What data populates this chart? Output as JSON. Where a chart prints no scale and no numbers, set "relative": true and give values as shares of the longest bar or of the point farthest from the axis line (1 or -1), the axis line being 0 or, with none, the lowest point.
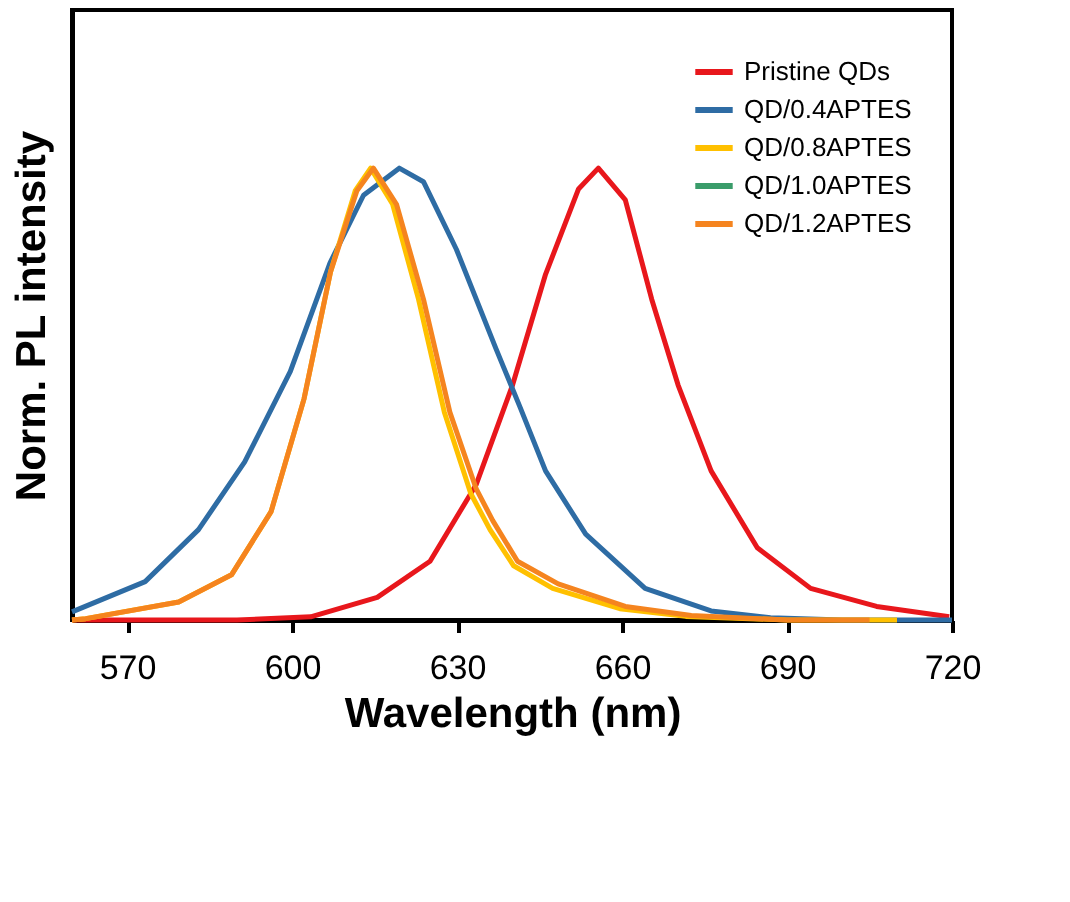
{
  "chart_data": {
    "type": "line",
    "relative": true,
    "xlabel": "Wavelength (nm)",
    "ylabel": "Norm. PL intensity",
    "xlim": [
      560,
      720
    ],
    "xticks": [
      570,
      600,
      630,
      660,
      690,
      720
    ],
    "grid": false,
    "legend": "top right",
    "marker": "none",
    "line_style": "solid",
    "series": [
      {
        "name": "Pristine QDs",
        "color": "#e8171c",
        "x": [
          560,
          590,
          603.4,
          615.5,
          625.1,
          633.5,
          640.1,
          646.1,
          652.1,
          655.7,
          660.6,
          665.4,
          670.2,
          676.2,
          684.6,
          694.3,
          706.3,
          719.5
        ],
        "values": [
          0,
          0,
          0.007,
          0.05,
          0.13,
          0.3,
          0.52,
          0.765,
          0.954,
          1,
          0.93,
          0.71,
          0.52,
          0.33,
          0.16,
          0.07,
          0.03,
          0.007
        ]
      },
      {
        "name": "QD/0.4APTES",
        "color": "#2e6ca4",
        "x": [
          560,
          573.3,
          583,
          591.4,
          599.7,
          606.9,
          613,
          619.5,
          623.9,
          629.9,
          637.1,
          641.5,
          646.1,
          653.4,
          664.2,
          676.2,
          687,
          700,
          720
        ],
        "values": [
          0.018,
          0.085,
          0.2,
          0.35,
          0.55,
          0.79,
          0.94,
          1,
          0.97,
          0.82,
          0.6,
          0.47,
          0.33,
          0.19,
          0.07,
          0.02,
          0.005,
          0,
          0
        ]
      },
      {
        "name": "QD/0.8APTES",
        "color": "#ffc000",
        "x": [
          560,
          562.5,
          579.4,
          589,
          596.2,
          602.2,
          607,
          611.5,
          614.3,
          618.3,
          623,
          627.7,
          632.5,
          636,
          640.3,
          647.4,
          659.6,
          671.6,
          690,
          710
        ],
        "values": [
          0,
          0.003,
          0.04,
          0.1,
          0.24,
          0.49,
          0.77,
          0.95,
          1,
          0.92,
          0.71,
          0.46,
          0.28,
          0.2,
          0.12,
          0.07,
          0.025,
          0.008,
          0,
          0
        ]
      },
      {
        "name": "QD/1.0APTES",
        "color": "#3a9c6a"
      },
      {
        "name": "QD/1.2APTES",
        "color": "#f5841f",
        "x": [
          560,
          562.5,
          579.4,
          589,
          596.2,
          602.2,
          607,
          611.8,
          614.8,
          619,
          623.9,
          628.7,
          633.5,
          636.5,
          641,
          648.4,
          660.6,
          672.6,
          690,
          705
        ],
        "values": [
          0,
          0.003,
          0.04,
          0.1,
          0.24,
          0.49,
          0.77,
          0.95,
          1,
          0.92,
          0.71,
          0.46,
          0.29,
          0.22,
          0.13,
          0.08,
          0.03,
          0.01,
          0,
          0
        ]
      }
    ]
  }
}
